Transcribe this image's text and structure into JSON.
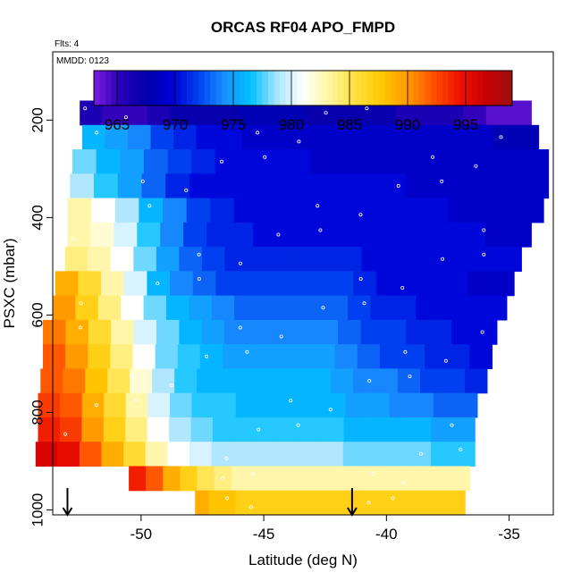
{
  "chart_data": {
    "type": "heatmap",
    "title": "ORCAS RF04 APO_FMPD",
    "flights_note": "Flts: 4",
    "date_note": "MMDD: 0123",
    "xlabel": "Latitude (deg N)",
    "ylabel": "PSXC (mbar)",
    "xlim": [
      -53.6,
      -33.2
    ],
    "ylim": [
      1010,
      60
    ],
    "x_ticks": [
      -50,
      -45,
      -40,
      -35
    ],
    "y_ticks": [
      200,
      400,
      600,
      800,
      1000
    ],
    "colorbar": {
      "range": [
        963,
        999
      ],
      "ticks": [
        965,
        970,
        975,
        980,
        985,
        990,
        995
      ],
      "colors": [
        "#7a1ce0",
        "#2a00b8",
        "#0000aa",
        "#0000d8",
        "#0040f0",
        "#1a90ff",
        "#00c0ff",
        "#a6e4ff",
        "#ffffff",
        "#fff5a0",
        "#ffe040",
        "#ffc800",
        "#ff9a00",
        "#ff5000",
        "#f01000",
        "#c80000",
        "#9a1010"
      ]
    },
    "bands": [
      {
        "p": 185,
        "lat_min": -52.5,
        "lat_max": -34.1,
        "values": [
          966,
          965,
          965,
          966,
          967,
          967,
          967,
          968,
          968,
          968,
          967,
          967,
          967,
          967,
          966,
          966,
          966,
          965,
          964,
          964
        ]
      },
      {
        "p": 235,
        "lat_min": -52.4,
        "lat_max": -33.8,
        "values": [
          976,
          975,
          974,
          972,
          971,
          970,
          970,
          969,
          969,
          969,
          969,
          969,
          969,
          969,
          969,
          969,
          969,
          969,
          968,
          968
        ]
      },
      {
        "p": 285,
        "lat_min": -52.8,
        "lat_max": -33.4,
        "values": [
          978,
          976,
          975,
          973,
          972,
          971,
          970,
          970,
          970,
          970,
          969,
          969,
          969,
          969,
          969,
          969,
          969,
          969,
          969,
          969
        ]
      },
      {
        "p": 335,
        "lat_min": -52.9,
        "lat_max": -33.4,
        "values": [
          979,
          977,
          975,
          973,
          971,
          970,
          970,
          970,
          970,
          970,
          970,
          970,
          970,
          970,
          969,
          969,
          969,
          969,
          969,
          969
        ]
      },
      {
        "p": 385,
        "lat_min": -53.0,
        "lat_max": -33.6,
        "values": [
          983,
          981,
          979,
          976,
          974,
          972,
          971,
          970,
          970,
          970,
          970,
          970,
          970,
          970,
          970,
          970,
          969,
          969,
          969,
          969
        ]
      },
      {
        "p": 435,
        "lat_min": -53.0,
        "lat_max": -34.1,
        "values": [
          983,
          982,
          980,
          977,
          974,
          972,
          971,
          971,
          970,
          970,
          970,
          970,
          970,
          970,
          970,
          970,
          970,
          970,
          969,
          969
        ]
      },
      {
        "p": 485,
        "lat_min": -53.1,
        "lat_max": -34.5,
        "values": [
          984,
          983,
          981,
          978,
          975,
          973,
          972,
          971,
          971,
          971,
          971,
          971,
          971,
          970,
          970,
          970,
          970,
          970,
          970,
          970
        ]
      },
      {
        "p": 535,
        "lat_min": -53.5,
        "lat_max": -34.8,
        "values": [
          989,
          986,
          983,
          980,
          976,
          974,
          973,
          972,
          972,
          972,
          972,
          972,
          972,
          971,
          970,
          970,
          970,
          970,
          969,
          969
        ]
      },
      {
        "p": 585,
        "lat_min": -53.6,
        "lat_max": -35.1,
        "values": [
          990,
          987,
          984,
          981,
          978,
          976,
          975,
          974,
          973,
          973,
          973,
          973,
          973,
          972,
          971,
          971,
          970,
          970,
          970,
          970
        ]
      },
      {
        "p": 635,
        "lat_min": -54.0,
        "lat_max": -35.5,
        "values": [
          991,
          989,
          986,
          983,
          980,
          978,
          976,
          975,
          974,
          974,
          974,
          974,
          974,
          973,
          972,
          972,
          971,
          971,
          970,
          970
        ]
      },
      {
        "p": 685,
        "lat_min": -54.0,
        "lat_max": -35.7,
        "values": [
          992,
          990,
          987,
          984,
          981,
          978,
          977,
          976,
          975,
          975,
          975,
          975,
          975,
          974,
          973,
          972,
          972,
          971,
          971,
          970
        ]
      },
      {
        "p": 735,
        "lat_min": -54.1,
        "lat_max": -35.9,
        "values": [
          992,
          991,
          988,
          985,
          982,
          979,
          977,
          976,
          976,
          976,
          976,
          976,
          976,
          975,
          974,
          974,
          973,
          972,
          972,
          971
        ]
      },
      {
        "p": 785,
        "lat_min": -54.2,
        "lat_max": -36.3,
        "values": [
          993,
          992,
          989,
          986,
          983,
          980,
          978,
          977,
          977,
          976,
          976,
          976,
          976,
          976,
          975,
          975,
          974,
          974,
          973,
          973
        ]
      },
      {
        "p": 835,
        "lat_min": -54.2,
        "lat_max": -36.4,
        "values": [
          994,
          993,
          990,
          987,
          984,
          981,
          979,
          978,
          977,
          977,
          977,
          977,
          977,
          977,
          976,
          976,
          976,
          976,
          975,
          975
        ]
      },
      {
        "p": 885,
        "lat_min": -54.3,
        "lat_max": -36.4,
        "values": [
          996,
          995,
          992,
          989,
          986,
          983,
          981,
          980,
          979,
          979,
          979,
          979,
          979,
          979,
          978,
          978,
          978,
          978,
          977,
          977
        ]
      },
      {
        "p": 935,
        "lat_min": -50.5,
        "lat_max": -36.6,
        "values": [
          994,
          992,
          989,
          987,
          985,
          984,
          983,
          983,
          983,
          983,
          983,
          983,
          983,
          983,
          983,
          983,
          983,
          983,
          983,
          983
        ]
      },
      {
        "p": 985,
        "lat_min": -47.8,
        "lat_max": -36.8,
        "values": [
          989,
          988,
          988,
          987,
          987,
          987,
          987,
          987,
          987,
          987,
          987,
          987,
          987,
          987,
          987,
          987,
          987,
          987,
          987,
          987
        ]
      }
    ],
    "markers": [
      {
        "x": -53.0,
        "y1": 955,
        "y2": 1010
      },
      {
        "x": -41.4,
        "y1": 955,
        "y2": 1010
      }
    ]
  }
}
